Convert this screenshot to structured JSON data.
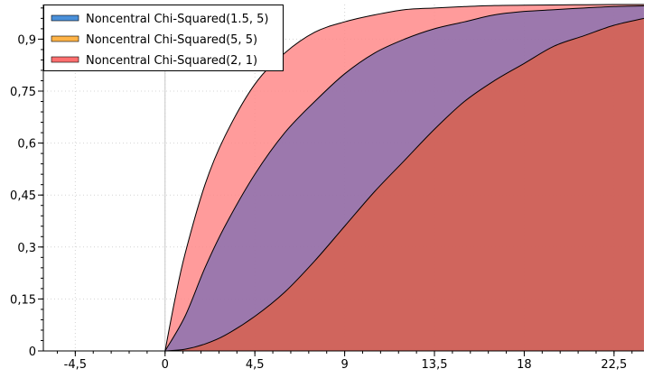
{
  "chart_data": {
    "type": "area",
    "title": "",
    "xlabel": "",
    "ylabel": "",
    "xlim": [
      -6.1,
      24
    ],
    "ylim": [
      0,
      1.0
    ],
    "x_ticks": [
      -4.5,
      0,
      4.5,
      9,
      13.5,
      18,
      22.5
    ],
    "x_tick_labels": [
      "-4,5",
      "0",
      "4,5",
      "9",
      "13,5",
      "18",
      "22,5"
    ],
    "y_ticks": [
      0,
      0.15,
      0.3,
      0.45,
      0.6,
      0.75,
      0.9
    ],
    "y_tick_labels": [
      "0",
      "0,15",
      "0,3",
      "0,45",
      "0,6",
      "0,75",
      "0,9"
    ],
    "grid": true,
    "legend_position": "top-left",
    "series": [
      {
        "name": "Noncentral Chi-Squared(1.5, 5)",
        "color": "#4a90d9",
        "x": [
          0,
          1,
          2,
          3,
          4.5,
          6,
          7.5,
          9,
          10.5,
          12,
          13.5,
          15,
          16.5,
          18,
          19.5,
          21,
          22.5,
          24
        ],
        "y": [
          0,
          0.1,
          0.24,
          0.36,
          0.51,
          0.63,
          0.72,
          0.8,
          0.86,
          0.9,
          0.93,
          0.95,
          0.97,
          0.98,
          0.985,
          0.99,
          0.994,
          0.996
        ]
      },
      {
        "name": "Noncentral Chi-Squared(5, 5)",
        "color": "#ffb347",
        "x": [
          0,
          1,
          2,
          3,
          4.5,
          6,
          7.5,
          9,
          10.5,
          12,
          13.5,
          15,
          16.5,
          18,
          19.5,
          21,
          22.5,
          24
        ],
        "y": [
          0,
          0.005,
          0.02,
          0.045,
          0.1,
          0.17,
          0.26,
          0.36,
          0.46,
          0.55,
          0.64,
          0.72,
          0.78,
          0.83,
          0.88,
          0.91,
          0.94,
          0.96
        ]
      },
      {
        "name": "Noncentral Chi-Squared(2, 1)",
        "color": "#ff6f6f",
        "x": [
          0,
          0.5,
          1,
          2,
          3,
          4.5,
          6,
          7.5,
          9,
          10.5,
          12,
          13.5,
          15,
          16.5,
          18,
          20,
          22.5,
          24
        ],
        "y": [
          0,
          0.15,
          0.28,
          0.48,
          0.62,
          0.77,
          0.86,
          0.92,
          0.95,
          0.97,
          0.985,
          0.99,
          0.994,
          0.997,
          0.998,
          0.999,
          1.0,
          1.0
        ]
      }
    ]
  }
}
